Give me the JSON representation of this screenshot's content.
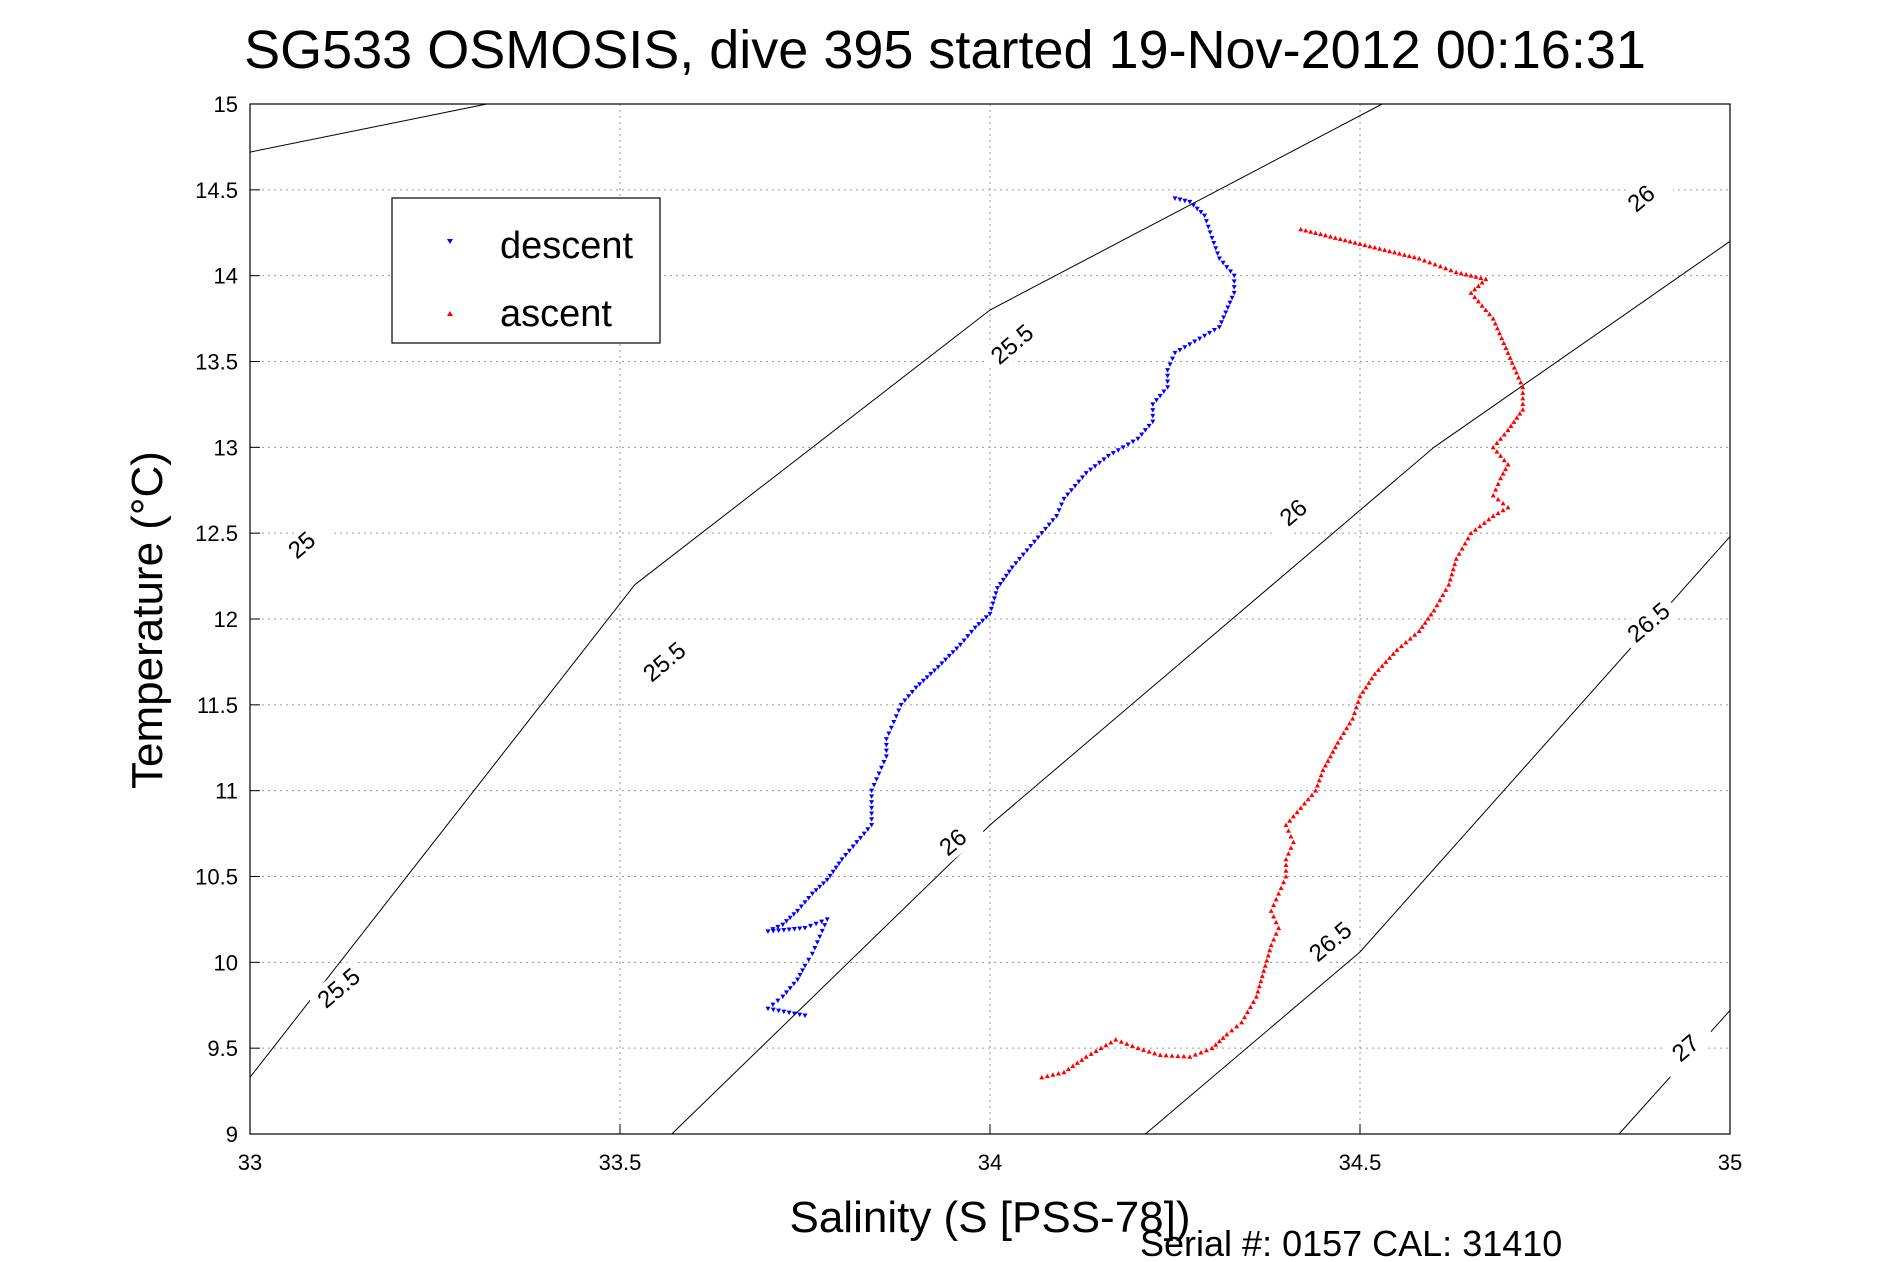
{
  "chart_data": {
    "type": "scatter",
    "title": "SG533 OSMOSIS, dive 395 started 19-Nov-2012 00:16:31",
    "xlabel": "Salinity (S [PSS-78])",
    "ylabel": "Temperature (°C)",
    "xlim": [
      33,
      35
    ],
    "ylim": [
      9,
      15
    ],
    "xticks": [
      33,
      33.5,
      34,
      34.5,
      35
    ],
    "yticks": [
      9,
      9.5,
      10,
      10.5,
      11,
      11.5,
      12,
      12.5,
      13,
      13.5,
      14,
      14.5,
      15
    ],
    "grid": true,
    "legend_position": "top-left",
    "footer": "Serial #: 0157  CAL: 31410",
    "series": [
      {
        "name": "descent",
        "color": "#0000ff",
        "marker": "triangle-down",
        "points": [
          [
            34.25,
            14.45
          ],
          [
            34.27,
            14.43
          ],
          [
            34.29,
            14.35
          ],
          [
            34.3,
            14.22
          ],
          [
            34.31,
            14.1
          ],
          [
            34.33,
            14.0
          ],
          [
            34.33,
            13.9
          ],
          [
            34.31,
            13.7
          ],
          [
            34.27,
            13.6
          ],
          [
            34.25,
            13.55
          ],
          [
            34.24,
            13.45
          ],
          [
            34.24,
            13.35
          ],
          [
            34.22,
            13.25
          ],
          [
            34.22,
            13.15
          ],
          [
            34.2,
            13.05
          ],
          [
            34.16,
            12.95
          ],
          [
            34.13,
            12.85
          ],
          [
            34.1,
            12.7
          ],
          [
            34.09,
            12.6
          ],
          [
            34.07,
            12.5
          ],
          [
            34.05,
            12.4
          ],
          [
            34.03,
            12.3
          ],
          [
            34.01,
            12.18
          ],
          [
            34.0,
            12.03
          ],
          [
            33.98,
            11.95
          ],
          [
            33.96,
            11.85
          ],
          [
            33.93,
            11.72
          ],
          [
            33.9,
            11.6
          ],
          [
            33.88,
            11.5
          ],
          [
            33.87,
            11.4
          ],
          [
            33.86,
            11.3
          ],
          [
            33.86,
            11.2
          ],
          [
            33.85,
            11.1
          ],
          [
            33.84,
            11.0
          ],
          [
            33.84,
            10.9
          ],
          [
            33.84,
            10.8
          ],
          [
            33.82,
            10.7
          ],
          [
            33.8,
            10.6
          ],
          [
            33.78,
            10.48
          ],
          [
            33.76,
            10.4
          ],
          [
            33.74,
            10.3
          ],
          [
            33.72,
            10.22
          ],
          [
            33.7,
            10.18
          ],
          [
            33.75,
            10.2
          ],
          [
            33.78,
            10.25
          ],
          [
            33.77,
            10.15
          ],
          [
            33.76,
            10.05
          ],
          [
            33.75,
            9.98
          ],
          [
            33.74,
            9.9
          ],
          [
            33.72,
            9.8
          ],
          [
            33.7,
            9.73
          ],
          [
            33.75,
            9.69
          ]
        ]
      },
      {
        "name": "ascent",
        "color": "#ff0000",
        "marker": "triangle-up",
        "points": [
          [
            34.07,
            9.33
          ],
          [
            34.1,
            9.36
          ],
          [
            34.13,
            9.45
          ],
          [
            34.17,
            9.55
          ],
          [
            34.2,
            9.5
          ],
          [
            34.23,
            9.46
          ],
          [
            34.27,
            9.45
          ],
          [
            34.3,
            9.5
          ],
          [
            34.32,
            9.58
          ],
          [
            34.34,
            9.65
          ],
          [
            34.36,
            9.8
          ],
          [
            34.37,
            9.95
          ],
          [
            34.38,
            10.1
          ],
          [
            34.39,
            10.2
          ],
          [
            34.38,
            10.3
          ],
          [
            34.39,
            10.4
          ],
          [
            34.4,
            10.5
          ],
          [
            34.4,
            10.6
          ],
          [
            34.41,
            10.7
          ],
          [
            34.4,
            10.8
          ],
          [
            34.42,
            10.9
          ],
          [
            34.44,
            11.0
          ],
          [
            34.45,
            11.12
          ],
          [
            34.47,
            11.28
          ],
          [
            34.49,
            11.42
          ],
          [
            34.5,
            11.55
          ],
          [
            34.52,
            11.68
          ],
          [
            34.55,
            11.82
          ],
          [
            34.58,
            11.93
          ],
          [
            34.6,
            12.05
          ],
          [
            34.62,
            12.2
          ],
          [
            34.63,
            12.35
          ],
          [
            34.65,
            12.5
          ],
          [
            34.68,
            12.6
          ],
          [
            34.7,
            12.65
          ],
          [
            34.68,
            12.72
          ],
          [
            34.69,
            12.82
          ],
          [
            34.7,
            12.9
          ],
          [
            34.68,
            13.0
          ],
          [
            34.7,
            13.1
          ],
          [
            34.72,
            13.22
          ],
          [
            34.72,
            13.35
          ],
          [
            34.7,
            13.55
          ],
          [
            34.68,
            13.75
          ],
          [
            34.65,
            13.9
          ],
          [
            34.67,
            13.98
          ],
          [
            34.63,
            14.02
          ],
          [
            34.58,
            14.1
          ],
          [
            34.42,
            14.27
          ]
        ]
      }
    ],
    "density_contours": [
      {
        "label": "25",
        "x": [
          33.0,
          33.32
        ],
        "y": [
          14.72,
          15.0
        ]
      },
      {
        "label": "25.5",
        "x": [
          33.0,
          33.52,
          34.0,
          34.53
        ],
        "y": [
          9.33,
          12.2,
          13.8,
          15.0
        ]
      },
      {
        "label": "26",
        "x": [
          33.57,
          34.0,
          34.6,
          35.0
        ],
        "y": [
          9.0,
          10.8,
          13.0,
          14.2
        ]
      },
      {
        "label": "26.5",
        "x": [
          34.21,
          34.5,
          35.0
        ],
        "y": [
          9.0,
          10.06,
          12.48
        ]
      },
      {
        "label": "27",
        "x": [
          34.85,
          35.0
        ],
        "y": [
          9.0,
          9.72
        ]
      }
    ],
    "contour_labels": [
      {
        "text": "25",
        "x": 33.07,
        "y": 12.43
      },
      {
        "text": "25.5",
        "x": 33.12,
        "y": 9.85
      },
      {
        "text": "25.5",
        "x": 33.56,
        "y": 11.75
      },
      {
        "text": "25.5",
        "x": 34.03,
        "y": 13.6
      },
      {
        "text": "26",
        "x": 33.95,
        "y": 10.7
      },
      {
        "text": "26",
        "x": 34.41,
        "y": 12.62
      },
      {
        "text": "26",
        "x": 34.88,
        "y": 14.45
      },
      {
        "text": "26.5",
        "x": 34.46,
        "y": 10.12
      },
      {
        "text": "26.5",
        "x": 34.89,
        "y": 11.98
      },
      {
        "text": "27",
        "x": 34.94,
        "y": 9.5
      }
    ]
  }
}
